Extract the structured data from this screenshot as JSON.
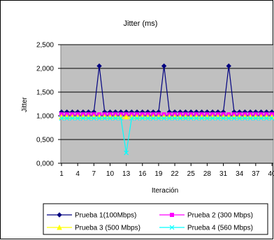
{
  "chart_data": {
    "type": "line",
    "title": "Jitter (ms)",
    "xlabel": "Iteración",
    "ylabel": "Jitter",
    "ylim": [
      0,
      2.5
    ],
    "yticks": [
      "0,000",
      "0,500",
      "1,000",
      "1,500",
      "2,000",
      "2,500"
    ],
    "xticks": [
      "1",
      "4",
      "7",
      "10",
      "13",
      "16",
      "19",
      "22",
      "25",
      "28",
      "31",
      "34",
      "37",
      "40"
    ],
    "x": [
      1,
      2,
      3,
      4,
      5,
      6,
      7,
      8,
      9,
      10,
      11,
      12,
      13,
      14,
      15,
      16,
      17,
      18,
      19,
      20,
      21,
      22,
      23,
      24,
      25,
      26,
      27,
      28,
      29,
      30,
      31,
      32,
      33,
      34,
      35,
      36,
      37,
      38,
      39,
      40
    ],
    "grid": true,
    "plot_background": "#c0c0c0",
    "legend_position": "bottom",
    "series": [
      {
        "name": "Prueba 1(100Mbps)",
        "color": "#000080",
        "marker": "diamond",
        "values": [
          1.08,
          1.08,
          1.08,
          1.08,
          1.08,
          1.08,
          1.08,
          2.05,
          1.08,
          1.08,
          1.08,
          1.08,
          1.08,
          1.08,
          1.08,
          1.08,
          1.08,
          1.08,
          1.08,
          2.05,
          1.08,
          1.08,
          1.08,
          1.08,
          1.08,
          1.08,
          1.08,
          1.08,
          1.08,
          1.08,
          1.08,
          2.05,
          1.08,
          1.08,
          1.08,
          1.08,
          1.08,
          1.08,
          1.08,
          1.08
        ]
      },
      {
        "name": "Prueba 2 (300 Mbps)",
        "color": "#ff00ff",
        "marker": "square",
        "values": [
          1.03,
          1.03,
          1.03,
          1.03,
          1.03,
          1.03,
          1.03,
          1.03,
          1.03,
          1.03,
          1.03,
          1.03,
          1.03,
          1.03,
          1.03,
          1.03,
          1.03,
          1.03,
          1.03,
          1.03,
          1.03,
          1.03,
          1.03,
          1.03,
          1.03,
          1.03,
          1.03,
          1.03,
          1.03,
          1.03,
          1.03,
          1.03,
          1.03,
          1.03,
          1.03,
          1.03,
          1.03,
          1.03,
          1.03,
          1.03
        ]
      },
      {
        "name": "Prueba 3 (500 Mbps)",
        "color": "#ffff00",
        "marker": "triangle",
        "values": [
          0.98,
          0.98,
          0.98,
          0.98,
          0.98,
          0.98,
          0.98,
          0.98,
          0.98,
          0.98,
          0.98,
          0.98,
          0.98,
          0.98,
          0.98,
          0.98,
          0.98,
          0.98,
          0.98,
          0.98,
          0.98,
          0.98,
          0.98,
          0.98,
          0.98,
          0.98,
          0.98,
          0.98,
          0.98,
          0.98,
          0.98,
          0.98,
          0.98,
          0.98,
          0.98,
          0.98,
          0.98,
          0.98,
          0.98,
          0.98
        ]
      },
      {
        "name": "Prueba 4 (560 Mbps)",
        "color": "#00ffff",
        "marker": "x",
        "values": [
          0.95,
          0.95,
          0.95,
          0.95,
          0.95,
          0.95,
          0.95,
          0.95,
          0.95,
          0.95,
          0.95,
          0.95,
          0.22,
          0.95,
          0.95,
          0.95,
          0.95,
          0.95,
          0.95,
          0.95,
          0.95,
          0.95,
          0.95,
          0.95,
          0.95,
          0.95,
          0.95,
          0.95,
          0.95,
          0.95,
          0.95,
          0.95,
          0.95,
          0.95,
          0.95,
          0.95,
          0.95,
          0.95,
          0.95,
          0.95
        ]
      }
    ]
  }
}
